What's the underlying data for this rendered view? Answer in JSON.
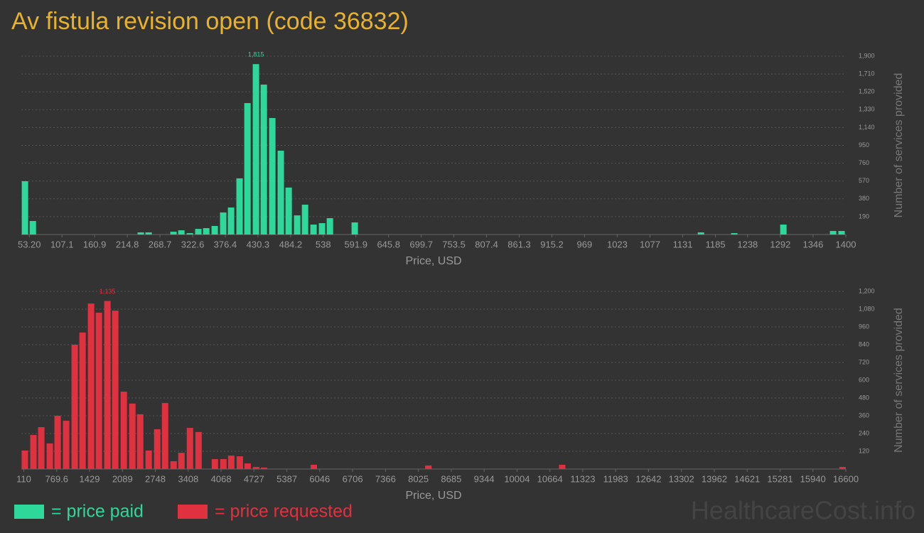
{
  "chart_data": [
    {
      "type": "bar",
      "title": "Av fistula revision open (code 36832)",
      "x_label": "Price, USD",
      "y_label": "Number of services provided",
      "grid": true,
      "xlim": [
        40,
        1400
      ],
      "ylim": [
        0,
        1900
      ],
      "xticks": [
        {
          "value": 53.2,
          "label": "53.20"
        },
        107.1,
        160.9,
        214.8,
        268.7,
        322.6,
        376.4,
        430.3,
        484.2,
        538,
        591.9,
        645.8,
        699.7,
        753.5,
        807.4,
        861.3,
        915.2,
        969,
        1023,
        1077,
        1131,
        1185,
        1238,
        1292,
        1346,
        1400
      ],
      "yticks": [
        190,
        380,
        570,
        760,
        950,
        {
          "value": 1140,
          "label": "1,140"
        },
        {
          "value": 1330,
          "label": "1,330"
        },
        {
          "value": 1520,
          "label": "1,520"
        },
        {
          "value": 1710,
          "label": "1,710"
        },
        {
          "value": 1900,
          "label": "1,900"
        }
      ],
      "x": [
        46,
        59,
        237,
        250,
        291,
        304,
        318,
        332,
        345,
        359,
        373,
        386,
        400,
        413,
        427,
        440,
        454,
        468,
        481,
        495,
        508,
        522,
        536,
        549,
        590,
        1161,
        1216,
        1297,
        1379,
        1393
      ],
      "series": [
        {
          "name": "= price paid",
          "color": "#2ed89a",
          "values": [
            568,
            144,
            23,
            23,
            30,
            45,
            15,
            60,
            68,
            91,
            235,
            288,
            598,
            1400,
            1815,
            1597,
            1241,
            893,
            500,
            204,
            318,
            106,
            121,
            174,
            129,
            23,
            15,
            106,
            38,
            38
          ],
          "value_labels": [
            null,
            null,
            null,
            null,
            null,
            null,
            null,
            null,
            null,
            null,
            null,
            null,
            null,
            null,
            "1,815",
            null,
            null,
            null,
            null,
            null,
            null,
            null,
            null,
            null,
            null,
            null,
            null,
            null,
            null,
            null
          ]
        }
      ]
    },
    {
      "type": "bar",
      "x_label": "Price, USD",
      "y_label": "Number of services provided",
      "grid": true,
      "xlim": [
        60,
        16600
      ],
      "ylim": [
        0,
        1200
      ],
      "xticks": [
        110,
        769.6,
        1429,
        2089,
        2748,
        3408,
        4068,
        4727,
        5387,
        6046,
        6706,
        7366,
        8025,
        8685,
        9344,
        10004,
        10664,
        11323,
        11983,
        12642,
        13302,
        13962,
        14621,
        15281,
        15940,
        16600
      ],
      "yticks": [
        120,
        240,
        360,
        480,
        600,
        720,
        840,
        960,
        {
          "value": 1080,
          "label": "1,080"
        },
        {
          "value": 1200,
          "label": "1,200"
        }
      ],
      "x": [
        131,
        303,
        460,
        631,
        788,
        959,
        1131,
        1288,
        1459,
        1616,
        1787,
        1944,
        2116,
        2287,
        2444,
        2615,
        2787,
        2944,
        3115,
        3272,
        3443,
        3615,
        3943,
        4114,
        4271,
        4443,
        4600,
        4771,
        4928,
        5927,
        8226,
        10910,
        16534
      ],
      "series": [
        {
          "name": "= price requested",
          "color": "#e03140",
          "values": [
            125,
            230,
            283,
            173,
            360,
            326,
            840,
            922,
            1118,
            1056,
            1135,
            1070,
            523,
            442,
            370,
            125,
            269,
            446,
            53,
            110,
            278,
            250,
            67,
            67,
            91,
            86,
            38,
            14,
            10,
            29,
            24,
            29,
            14
          ],
          "value_labels": [
            null,
            null,
            null,
            null,
            null,
            null,
            null,
            null,
            null,
            null,
            "1,135",
            null,
            null,
            null,
            null,
            null,
            null,
            null,
            null,
            null,
            null,
            null,
            null,
            null,
            null,
            null,
            null,
            null,
            null,
            null,
            null,
            null,
            null
          ]
        }
      ]
    }
  ],
  "watermark": "HealthcareCost.info"
}
